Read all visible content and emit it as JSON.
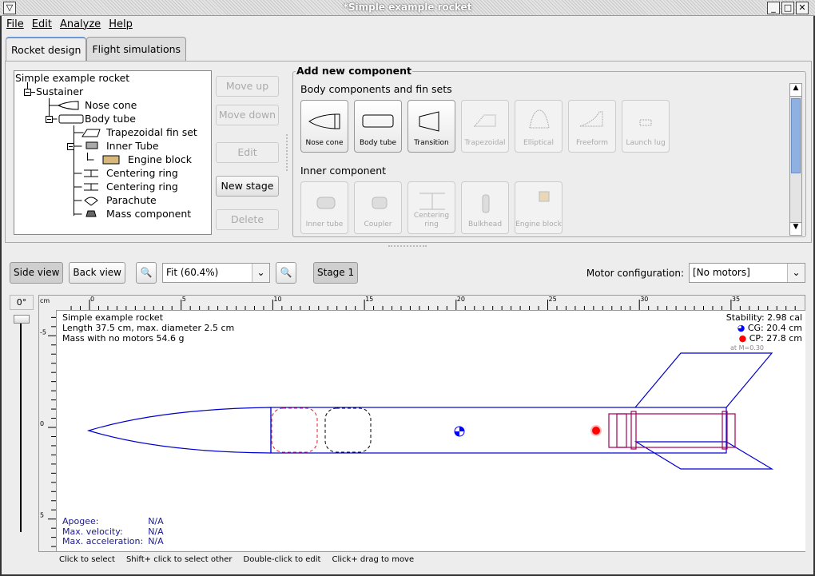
{
  "window": {
    "title": "*Simple example rocket"
  },
  "menu": [
    "File",
    "Edit",
    "Analyze",
    "Help"
  ],
  "tabs": [
    "Rocket design",
    "Flight simulations"
  ],
  "tree": {
    "root": "Simple example rocket",
    "items": [
      {
        "label": "Sustainer",
        "depth": 1
      },
      {
        "label": "Nose cone",
        "depth": 2
      },
      {
        "label": "Body tube",
        "depth": 2
      },
      {
        "label": "Trapezoidal fin set",
        "depth": 3
      },
      {
        "label": "Inner Tube",
        "depth": 3
      },
      {
        "label": "Engine block",
        "depth": 4
      },
      {
        "label": "Centering ring",
        "depth": 3
      },
      {
        "label": "Centering ring",
        "depth": 3
      },
      {
        "label": "Parachute",
        "depth": 3
      },
      {
        "label": "Mass component",
        "depth": 3
      }
    ]
  },
  "tree_buttons": {
    "move_up": "Move up",
    "move_down": "Move down",
    "edit": "Edit",
    "new_stage": "New stage",
    "delete": "Delete"
  },
  "add_component": {
    "title": "Add new component",
    "body_section": "Body components and fin sets",
    "body_items": [
      {
        "label": "Nose cone",
        "enabled": true
      },
      {
        "label": "Body tube",
        "enabled": true
      },
      {
        "label": "Transition",
        "enabled": true
      },
      {
        "label": "Trapezoidal",
        "enabled": false
      },
      {
        "label": "Elliptical",
        "enabled": false
      },
      {
        "label": "Freeform",
        "enabled": false
      },
      {
        "label": "Launch lug",
        "enabled": false
      }
    ],
    "inner_section": "Inner component",
    "inner_items": [
      {
        "label": "Inner tube",
        "enabled": false
      },
      {
        "label": "Coupler",
        "enabled": false
      },
      {
        "label": "Centering ring",
        "enabled": false
      },
      {
        "label": "Bulkhead",
        "enabled": false
      },
      {
        "label": "Engine block",
        "enabled": false
      }
    ]
  },
  "view_toolbar": {
    "side_view": "Side view",
    "back_view": "Back view",
    "zoom": "Fit (60.4%)",
    "stage": "Stage 1",
    "motor_label": "Motor configuration:",
    "motor_value": "[No motors]"
  },
  "rotation": "0°",
  "ruler": {
    "unit": "cm",
    "x_ticks": [
      "0",
      "5",
      "10",
      "15",
      "20",
      "25",
      "30",
      "35"
    ],
    "y_ticks": [
      "-5",
      "0",
      "5"
    ]
  },
  "rocket_info": {
    "name": "Simple example rocket",
    "dims": "Length 37.5 cm, max. diameter 2.5 cm",
    "mass": "Mass with no motors 54.6 g",
    "stability": "Stability: 2.98 cal",
    "cg": "CG: 20.4 cm",
    "cp": "CP: 27.8 cm",
    "mach": "at M=0.30"
  },
  "flight_info": {
    "apogee_label": "Apogee:",
    "apogee": "N/A",
    "vel_label": "Max. velocity:",
    "vel": "N/A",
    "acc_label": "Max. acceleration:",
    "acc": "N/A"
  },
  "status_hints": [
    "Click to select",
    "Shift+ click to select other",
    "Double-click to edit",
    "Click+ drag to move"
  ],
  "colors": {
    "rocket": "#0000d0",
    "inner": "#a0005a",
    "cp": "#ff0000",
    "cg": "#0000ff",
    "info_text": "#1a1a8c"
  }
}
